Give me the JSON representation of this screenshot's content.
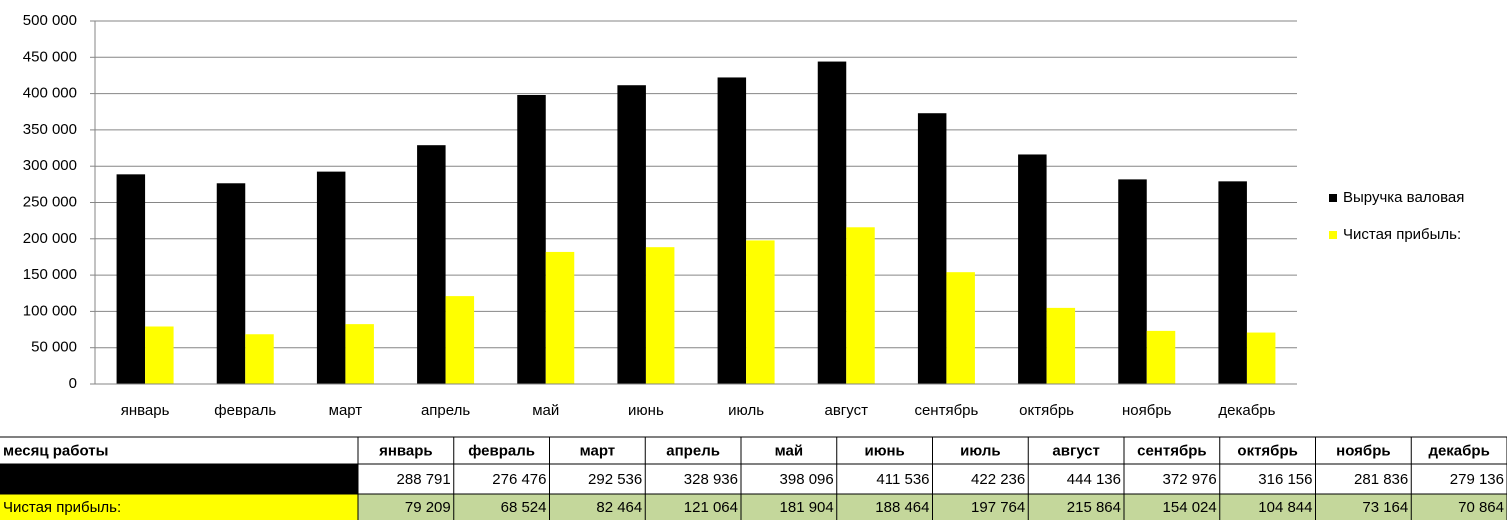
{
  "chart_data": {
    "type": "bar",
    "categories": [
      "январь",
      "февраль",
      "март",
      "апрель",
      "май",
      "июнь",
      "июль",
      "август",
      "сентябрь",
      "октябрь",
      "ноябрь",
      "декабрь"
    ],
    "series": [
      {
        "name": "Выручка валовая",
        "color": "#000000",
        "values": [
          288791,
          276476,
          292536,
          328936,
          398096,
          411536,
          422236,
          444136,
          372976,
          316156,
          281836,
          279136
        ],
        "value_labels": [
          "288 791",
          "276 476",
          "292 536",
          "328 936",
          "398 096",
          "411 536",
          "422 236",
          "444 136",
          "372 976",
          "316 156",
          "281 836",
          "279 136"
        ]
      },
      {
        "name": "Чистая прибыль:",
        "color": "#ffff00",
        "values": [
          79209,
          68524,
          82464,
          121064,
          181904,
          188464,
          197764,
          215864,
          154024,
          104844,
          73164,
          70864
        ],
        "value_labels": [
          "79 209",
          "68 524",
          "82 464",
          "121 064",
          "181 904",
          "188 464",
          "197 764",
          "215 864",
          "154 024",
          "104 844",
          "73 164",
          "70 864"
        ]
      }
    ],
    "ylim": [
      0,
      500000
    ],
    "yticks": [
      0,
      {
        "value": 50000,
        "label": "50 000"
      },
      {
        "value": 100000,
        "label": "100 000"
      },
      {
        "value": 150000,
        "label": "150 000"
      },
      {
        "value": 200000,
        "label": "200 000"
      },
      {
        "value": 250000,
        "label": "250 000"
      },
      {
        "value": 300000,
        "label": "300 000"
      },
      {
        "value": 350000,
        "label": "350 000"
      },
      {
        "value": 400000,
        "label": "400 000"
      },
      {
        "value": 450000,
        "label": "450 000"
      },
      {
        "value": 500000,
        "label": "500 000"
      }
    ],
    "grid": true,
    "legend": "right"
  },
  "table": {
    "header": "месяц работы"
  }
}
